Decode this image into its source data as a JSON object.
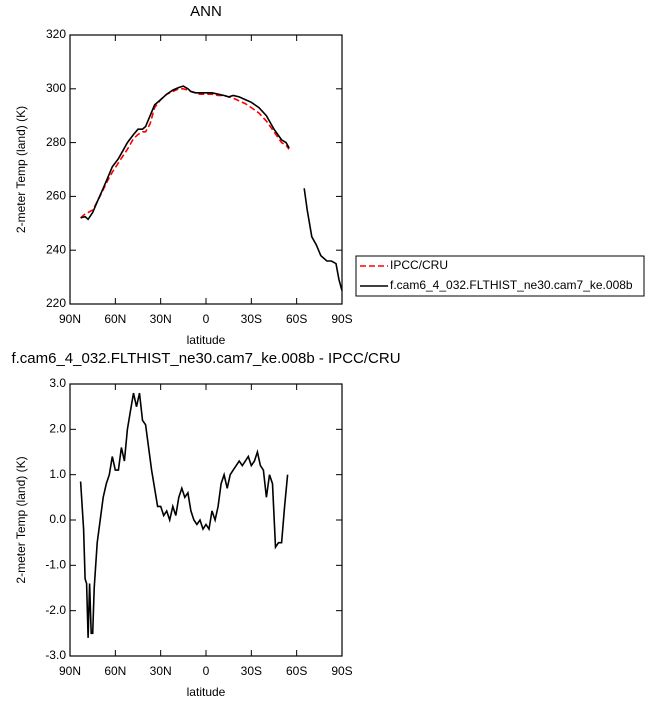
{
  "chart_data": [
    {
      "type": "line",
      "title": "ANN",
      "xlabel": "latitude",
      "ylabel": "2-meter Temp (land) (K)",
      "x": [
        83,
        80,
        78,
        75,
        72,
        68,
        65,
        62,
        58,
        55,
        52,
        48,
        45,
        42,
        40,
        37,
        34,
        30,
        26,
        22,
        18,
        15,
        12,
        10,
        7,
        4,
        0,
        -4,
        -8,
        -12,
        -15,
        -18,
        -22,
        -26,
        -30,
        -35,
        -40,
        -45,
        -50,
        -53,
        -55,
        -60,
        -65,
        -67,
        -70,
        -73,
        -76,
        -80,
        -83,
        -86,
        -88,
        -90
      ],
      "series": [
        {
          "name": "IPCC/CRU",
          "color": "#ff0000",
          "dash": true,
          "values": [
            252,
            253.5,
            254,
            255,
            258,
            262.5,
            266,
            269,
            272.5,
            275,
            277.5,
            281.5,
            283,
            284,
            284,
            287,
            293,
            296,
            298,
            299,
            300,
            300,
            299.5,
            299,
            298.5,
            298,
            298,
            298,
            297.5,
            297.5,
            297,
            296.5,
            295.5,
            294.5,
            293,
            291,
            288,
            284,
            280,
            279,
            277.5,
            null,
            null,
            null,
            null,
            null,
            null,
            null,
            null,
            null,
            null,
            null
          ]
        },
        {
          "name": "f.cam6_4_032.FLTHIST_ne30.cam7_ke.008b",
          "color": "#000000",
          "dash": false,
          "values": [
            252,
            252.5,
            251.5,
            254,
            258,
            263,
            267,
            271,
            274,
            277,
            280,
            283,
            285,
            285,
            286,
            290,
            294,
            296,
            298,
            299.5,
            300.5,
            301,
            300,
            299,
            298.5,
            298.5,
            298.5,
            298.5,
            298,
            297.5,
            297,
            297.5,
            297,
            296,
            295,
            293,
            290,
            285,
            281,
            280,
            278,
            null,
            263,
            255,
            245,
            242,
            238,
            236,
            236,
            235,
            229,
            225
          ]
        }
      ],
      "xlim": [
        90,
        -90
      ],
      "xticks": [
        {
          "value": 90,
          "label": "90N"
        },
        {
          "value": 60,
          "label": "60N"
        },
        {
          "value": 30,
          "label": "30N"
        },
        0,
        {
          "value": -30,
          "label": "30S"
        },
        {
          "value": -60,
          "label": "60S"
        },
        {
          "value": -90,
          "label": "90S"
        }
      ],
      "ylim": [
        220,
        320
      ],
      "yticks": [
        220,
        240,
        260,
        280,
        300,
        320
      ],
      "legend": "right"
    },
    {
      "type": "line",
      "title": "f.cam6_4_032.FLTHIST_ne30.cam7_ke.008b - IPCC/CRU",
      "xlabel": "latitude",
      "ylabel": "2-meter Temp (land) (K)",
      "x": [
        83,
        81,
        80,
        79,
        78,
        77,
        76,
        75,
        74,
        72,
        70,
        68,
        66,
        64,
        62,
        60,
        58,
        56,
        54,
        52,
        50,
        48,
        46,
        44,
        42,
        40,
        38,
        36,
        34,
        32,
        30,
        28,
        26,
        24,
        22,
        20,
        18,
        16,
        14,
        12,
        10,
        8,
        6,
        4,
        2,
        0,
        -2,
        -4,
        -6,
        -8,
        -10,
        -12,
        -14,
        -16,
        -18,
        -20,
        -22,
        -24,
        -26,
        -28,
        -30,
        -32,
        -34,
        -36,
        -38,
        -40,
        -42,
        -44,
        -46,
        -48,
        -50,
        -52,
        -54
      ],
      "values": [
        0.85,
        -0.2,
        -1.3,
        -1.4,
        -2.6,
        -1.4,
        -2.5,
        -2.5,
        -1.5,
        -0.5,
        0.0,
        0.5,
        0.8,
        1.0,
        1.4,
        1.1,
        1.1,
        1.6,
        1.3,
        2.0,
        2.4,
        2.8,
        2.5,
        2.8,
        2.2,
        2.1,
        1.6,
        1.1,
        0.7,
        0.3,
        0.3,
        0.1,
        0.2,
        0.0,
        0.3,
        0.1,
        0.5,
        0.7,
        0.5,
        0.6,
        0.2,
        0.0,
        -0.1,
        0.0,
        -0.2,
        -0.1,
        -0.2,
        0.2,
        0.0,
        0.3,
        0.8,
        1.0,
        0.7,
        1.0,
        1.1,
        1.2,
        1.3,
        1.2,
        1.3,
        1.4,
        1.2,
        1.3,
        1.5,
        1.2,
        1.1,
        0.5,
        1.0,
        0.8,
        -0.6,
        -0.5,
        -0.5,
        0.3,
        1.0
      ],
      "color": "#000000",
      "xlim": [
        90,
        -90
      ],
      "xticks": [
        {
          "value": 90,
          "label": "90N"
        },
        {
          "value": 60,
          "label": "60N"
        },
        {
          "value": 30,
          "label": "30N"
        },
        0,
        {
          "value": -30,
          "label": "30S"
        },
        {
          "value": -60,
          "label": "60S"
        },
        {
          "value": -90,
          "label": "90S"
        }
      ],
      "ylim": [
        -3,
        3
      ],
      "yticks": [
        {
          "value": -3,
          "label": "-3.0"
        },
        {
          "value": -2,
          "label": "-2.0"
        },
        {
          "value": -1,
          "label": "-1.0"
        },
        {
          "value": 0,
          "label": "0.0"
        },
        {
          "value": 1,
          "label": "1.0"
        },
        {
          "value": 2,
          "label": "2.0"
        },
        {
          "value": 3,
          "label": "3.0"
        }
      ]
    }
  ]
}
